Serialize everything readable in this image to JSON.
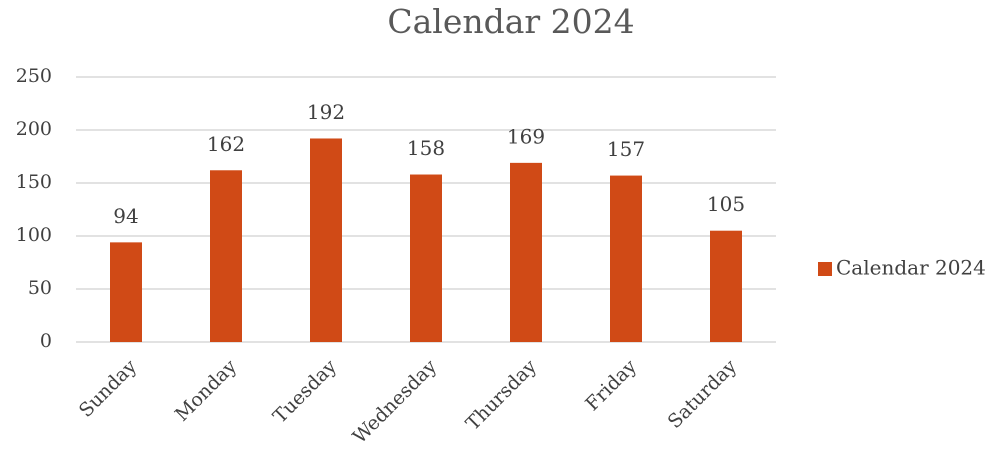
{
  "chart_data": {
    "type": "bar",
    "title": "Calendar 2024",
    "categories": [
      "Sunday",
      "Monday",
      "Tuesday",
      "Wednesday",
      "Thursday",
      "Friday",
      "Saturday"
    ],
    "series": [
      {
        "name": "Calendar 2024",
        "color": "#d04a16",
        "values": [
          94,
          162,
          192,
          158,
          169,
          157,
          105
        ]
      }
    ],
    "ylim": [
      0,
      250
    ],
    "yticks": [
      0,
      50,
      100,
      150,
      200,
      250
    ],
    "grid": true,
    "legend": "right"
  }
}
